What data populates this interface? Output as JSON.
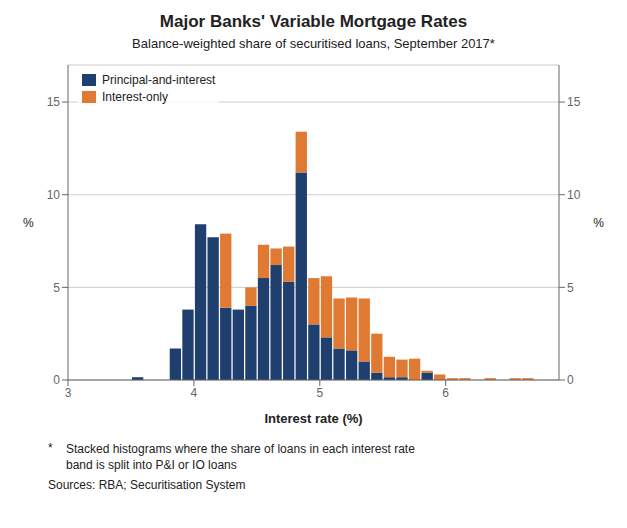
{
  "chart_data": {
    "type": "bar",
    "stacked": true,
    "grid": true,
    "legend": "upper left",
    "title": "Major Banks' Variable Mortgage Rates",
    "subtitle": "Balance-weighted share of securitised loans, September 2017*",
    "xlabel": "Interest rate (%)",
    "ylabel": "%",
    "y2label": "%",
    "footnote_mark": "*",
    "footnote": "Stacked histograms where the share of loans in each interest rate\nband is split into P&I or IO loans",
    "sources": "Sources:  RBA; Securitisation System",
    "x": [
      3.55,
      3.65,
      3.75,
      3.85,
      3.95,
      4.05,
      4.15,
      4.25,
      4.35,
      4.45,
      4.55,
      4.65,
      4.75,
      4.85,
      4.95,
      5.05,
      5.15,
      5.25,
      5.35,
      5.45,
      5.55,
      5.65,
      5.75,
      5.85,
      5.95,
      6.05,
      6.15,
      6.25,
      6.35,
      6.45,
      6.55,
      6.65
    ],
    "series": [
      {
        "name": "Principal-and-interest",
        "color": "#1f3f6e",
        "values": [
          0.15,
          0.0,
          0.0,
          1.7,
          3.8,
          8.4,
          7.7,
          3.9,
          3.8,
          4.0,
          5.5,
          6.2,
          5.3,
          11.2,
          3.0,
          2.3,
          1.7,
          1.6,
          1.0,
          0.4,
          0.15,
          0.15,
          0.0,
          0.4,
          0.0,
          0.0,
          0.0,
          0.0,
          0.0,
          0.0,
          0.0,
          0.0
        ]
      },
      {
        "name": "Interest-only",
        "color": "#e07932",
        "values": [
          0.0,
          0.0,
          0.0,
          0.0,
          0.0,
          0.0,
          0.0,
          4.0,
          0.0,
          1.0,
          1.8,
          0.9,
          1.9,
          2.2,
          2.5,
          3.3,
          2.7,
          2.85,
          3.4,
          2.1,
          1.1,
          0.95,
          1.15,
          0.1,
          0.3,
          0.1,
          0.1,
          0.0,
          0.1,
          0.0,
          0.1,
          0.1
        ]
      }
    ],
    "xlim": [
      3.0,
      6.9
    ],
    "xticks": [
      3,
      4,
      5,
      6
    ],
    "ylim": [
      0,
      17
    ],
    "yticks": [
      0,
      5,
      10,
      15
    ],
    "y2lim": [
      0,
      17
    ],
    "y2ticks": [
      0,
      5,
      10,
      15
    ]
  }
}
